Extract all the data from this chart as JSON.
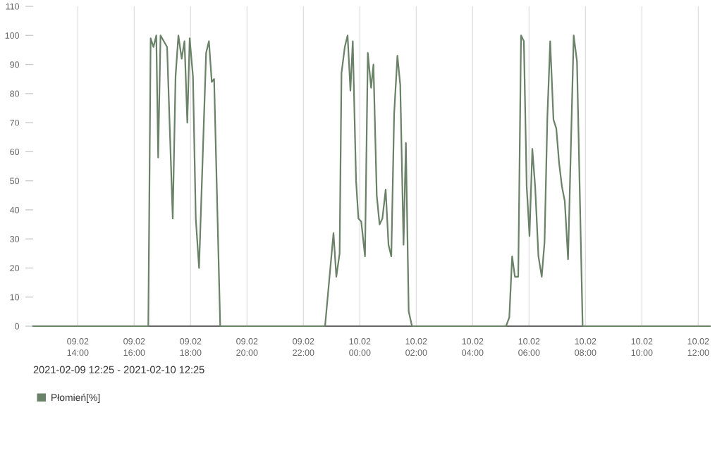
{
  "chart_data": {
    "type": "line",
    "annotations": [
      "2021-02-09 12:25 - 2021-02-10 12:25"
    ],
    "x": [
      "2021-02-09T12:25",
      "2021-02-09T16:30",
      "2021-02-09T16:35",
      "2021-02-09T16:41",
      "2021-02-09T16:47",
      "2021-02-09T16:51",
      "2021-02-09T16:56",
      "2021-02-09T17:03",
      "2021-02-09T17:10",
      "2021-02-09T17:22",
      "2021-02-09T17:28",
      "2021-02-09T17:34",
      "2021-02-09T17:41",
      "2021-02-09T17:47",
      "2021-02-09T17:53",
      "2021-02-09T17:58",
      "2021-02-09T18:05",
      "2021-02-09T18:11",
      "2021-02-09T18:18",
      "2021-02-09T18:33",
      "2021-02-09T18:39",
      "2021-02-09T18:45",
      "2021-02-09T18:50",
      "2021-02-09T19:03",
      "2021-02-09T22:46",
      "2021-02-09T23:04",
      "2021-02-09T23:10",
      "2021-02-09T23:17",
      "2021-02-09T23:21",
      "2021-02-09T23:28",
      "2021-02-09T23:34",
      "2021-02-09T23:40",
      "2021-02-09T23:45",
      "2021-02-09T23:52",
      "2021-02-09T23:57",
      "2021-02-10T00:03",
      "2021-02-10T00:11",
      "2021-02-10T00:17",
      "2021-02-10T00:24",
      "2021-02-10T00:29",
      "2021-02-10T00:36",
      "2021-02-10T00:42",
      "2021-02-10T00:48",
      "2021-02-10T00:55",
      "2021-02-10T01:01",
      "2021-02-10T01:07",
      "2021-02-10T01:13",
      "2021-02-10T01:20",
      "2021-02-10T01:26",
      "2021-02-10T01:33",
      "2021-02-10T01:38",
      "2021-02-10T01:44",
      "2021-02-10T01:51",
      "2021-02-10T05:11",
      "2021-02-10T05:18",
      "2021-02-10T05:24",
      "2021-02-10T05:30",
      "2021-02-10T05:37",
      "2021-02-10T05:43",
      "2021-02-10T05:49",
      "2021-02-10T05:55",
      "2021-02-10T06:01",
      "2021-02-10T06:07",
      "2021-02-10T06:13",
      "2021-02-10T06:20",
      "2021-02-10T06:27",
      "2021-02-10T06:33",
      "2021-02-10T06:39",
      "2021-02-10T06:45",
      "2021-02-10T06:52",
      "2021-02-10T06:58",
      "2021-02-10T07:04",
      "2021-02-10T07:10",
      "2021-02-10T07:16",
      "2021-02-10T07:23",
      "2021-02-10T07:35",
      "2021-02-10T07:42",
      "2021-02-10T07:54",
      "2021-02-10T12:25"
    ],
    "series": [
      {
        "name": "Płomień[%]",
        "color": "#6a8267",
        "values": [
          0,
          0,
          99,
          96,
          100,
          58,
          100,
          98,
          96,
          37,
          86,
          100,
          92,
          98,
          70,
          99,
          86,
          37,
          20,
          94,
          98,
          84,
          85,
          0,
          0,
          32,
          17,
          25,
          87,
          96,
          100,
          81,
          98,
          50,
          37,
          36,
          24,
          94,
          82,
          90,
          45,
          35,
          37,
          47,
          28,
          24,
          73,
          93,
          83,
          28,
          63,
          5,
          0,
          0,
          3,
          24,
          17,
          17,
          100,
          98,
          48,
          31,
          61,
          48,
          24,
          17,
          29,
          72,
          98,
          71,
          68,
          56,
          48,
          43,
          23,
          100,
          91,
          0,
          0
        ]
      }
    ],
    "xlim": [
      "2021-02-09T12:25",
      "2021-02-10T12:25"
    ],
    "xticks": [
      {
        "value": "2021-02-09T14:00",
        "label": "09.02\n14:00"
      },
      {
        "value": "2021-02-09T16:00",
        "label": "09.02\n16:00"
      },
      {
        "value": "2021-02-09T18:00",
        "label": "09.02\n18:00"
      },
      {
        "value": "2021-02-09T20:00",
        "label": "09.02\n20:00"
      },
      {
        "value": "2021-02-09T22:00",
        "label": "09.02\n22:00"
      },
      {
        "value": "2021-02-10T00:00",
        "label": "10.02\n00:00"
      },
      {
        "value": "2021-02-10T02:00",
        "label": "10.02\n02:00"
      },
      {
        "value": "2021-02-10T04:00",
        "label": "10.02\n04:00"
      },
      {
        "value": "2021-02-10T06:00",
        "label": "10.02\n06:00"
      },
      {
        "value": "2021-02-10T08:00",
        "label": "10.02\n08:00"
      },
      {
        "value": "2021-02-10T10:00",
        "label": "10.02\n10:00"
      },
      {
        "value": "2021-02-10T12:00",
        "label": "10.02\n12:00"
      }
    ],
    "ylim": [
      0,
      110
    ],
    "yticks": [
      0,
      10,
      20,
      30,
      40,
      50,
      60,
      70,
      80,
      90,
      100,
      110
    ],
    "grid": "x",
    "legend": "bottom left",
    "line_style": "solid"
  }
}
